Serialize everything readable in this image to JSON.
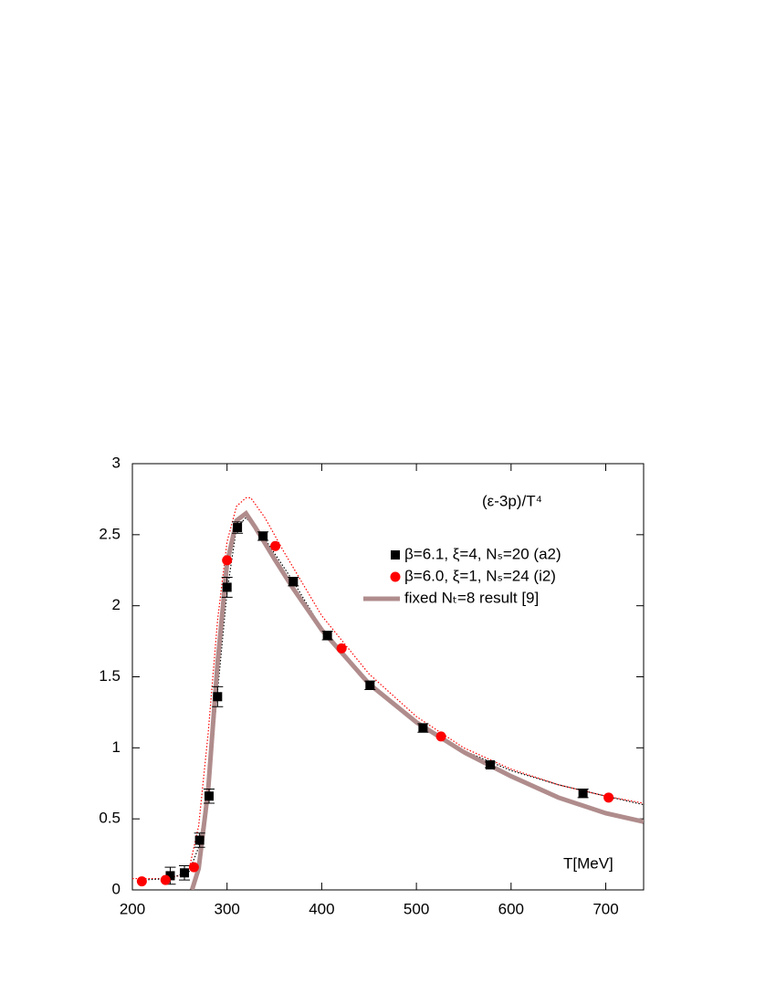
{
  "chart_data": {
    "type": "scatter",
    "annotation": "(ε-3p)/T⁴",
    "x_label": "T[MeV]",
    "xlim": [
      200,
      740
    ],
    "xticks": [
      200,
      300,
      400,
      500,
      600,
      700
    ],
    "ylim": [
      0,
      3
    ],
    "yticks": [
      0,
      0.5,
      1,
      1.5,
      2,
      2.5,
      3
    ],
    "series": [
      {
        "kind": "line",
        "style": "dotted",
        "color": "#ff0000",
        "x": [
          200,
          230,
          250,
          260,
          270,
          280,
          290,
          300,
          310,
          320,
          325,
          340,
          360,
          400,
          450,
          500,
          550,
          600,
          650,
          700,
          740
        ],
        "values": [
          0.08,
          0.08,
          0.1,
          0.15,
          0.45,
          1.1,
          1.9,
          2.45,
          2.7,
          2.76,
          2.76,
          2.62,
          2.38,
          1.93,
          1.52,
          1.22,
          1.0,
          0.85,
          0.74,
          0.66,
          0.61
        ]
      },
      {
        "kind": "line",
        "style": "dotted",
        "color": "#000000",
        "x": [
          210,
          240,
          260,
          270,
          280,
          290,
          300,
          310,
          320,
          340,
          370,
          400,
          450,
          500,
          550,
          600,
          650,
          700,
          740
        ],
        "values": [
          0.07,
          0.08,
          0.13,
          0.3,
          0.7,
          1.4,
          2.1,
          2.55,
          2.62,
          2.47,
          2.17,
          1.84,
          1.46,
          1.17,
          0.98,
          0.84,
          0.74,
          0.66,
          0.6
        ]
      },
      {
        "name": "fixed Nₜ=8 result [9]",
        "kind": "line",
        "style": "thick",
        "color": "#b08c8c",
        "x": [
          263,
          270,
          280,
          290,
          300,
          310,
          320,
          330,
          350,
          370,
          400,
          450,
          500,
          550,
          600,
          650,
          700,
          740
        ],
        "values": [
          0,
          0.15,
          0.7,
          1.6,
          2.3,
          2.6,
          2.65,
          2.55,
          2.33,
          2.12,
          1.83,
          1.45,
          1.18,
          0.97,
          0.8,
          0.65,
          0.54,
          0.48
        ]
      },
      {
        "name": "β=6.1, ξ=4, Nₛ=20 (a2)",
        "kind": "square",
        "color": "#000000",
        "x": [
          240,
          255,
          271,
          281,
          290,
          300,
          311,
          338,
          370,
          406,
          451,
          507,
          578,
          676
        ],
        "values": [
          0.1,
          0.12,
          0.35,
          0.66,
          1.36,
          2.13,
          2.55,
          2.49,
          2.17,
          1.79,
          1.44,
          1.14,
          0.88,
          0.68
        ],
        "errors": [
          0.06,
          0.05,
          0.05,
          0.05,
          0.07,
          0.07,
          0.04,
          0.03,
          0.03,
          0.03,
          0.03,
          0.03,
          0.02,
          0.03
        ]
      },
      {
        "name": "β=6.0, ξ=1, Nₛ=24 (i2)",
        "kind": "circle",
        "color": "#ff0000",
        "x": [
          210,
          235,
          265,
          300,
          351,
          421,
          526,
          703
        ],
        "values": [
          0.06,
          0.07,
          0.16,
          2.32,
          2.42,
          1.7,
          1.08,
          0.65
        ]
      }
    ],
    "legend_order": [
      3,
      4,
      2
    ]
  }
}
